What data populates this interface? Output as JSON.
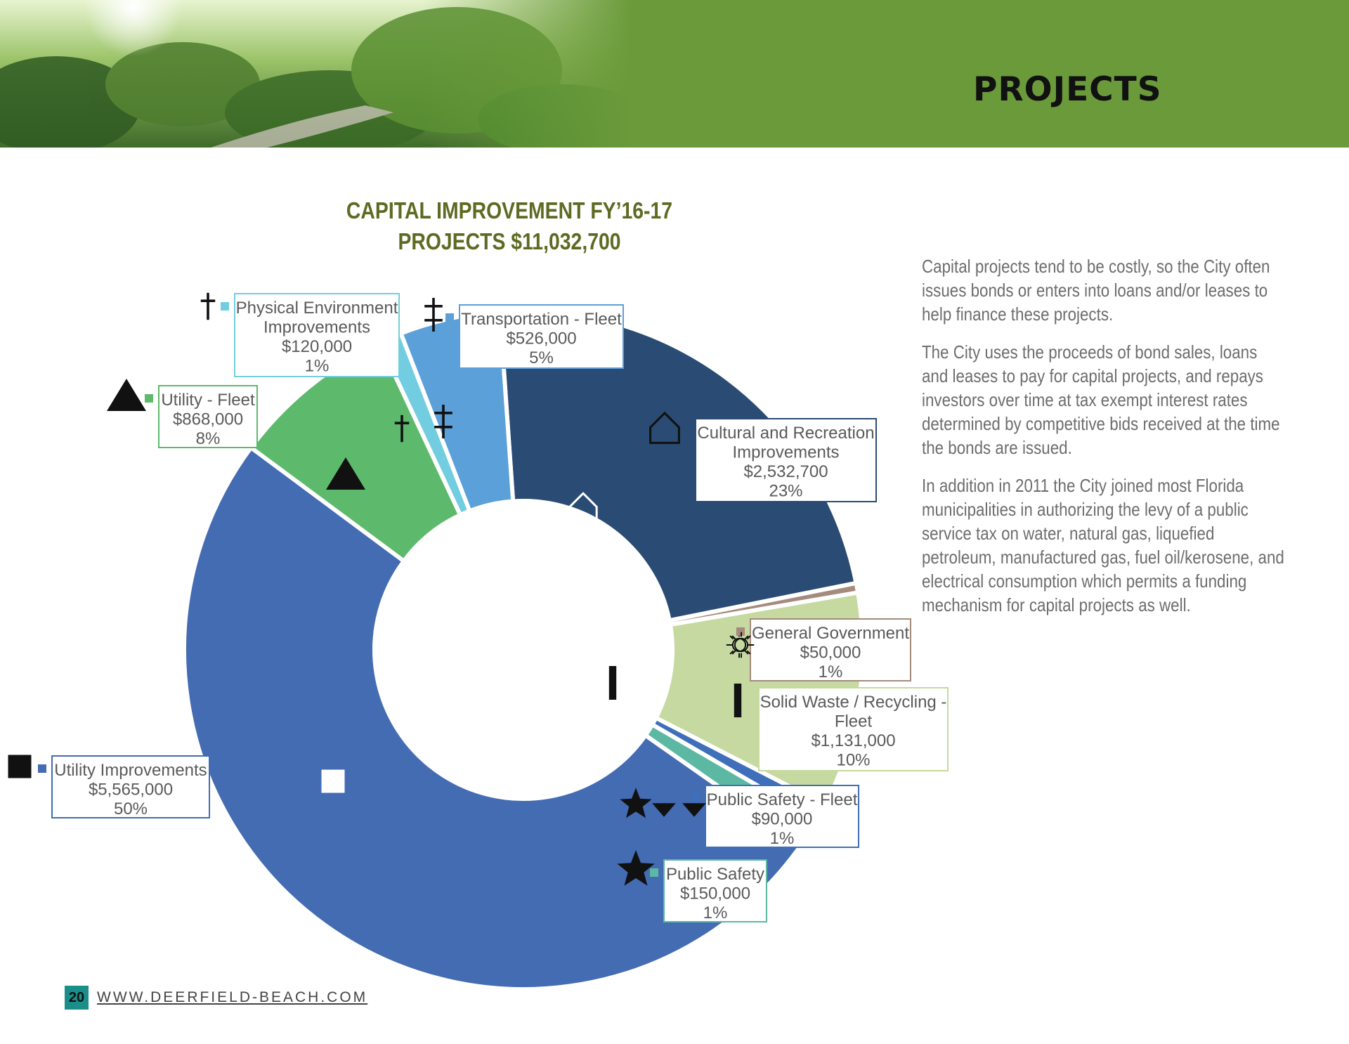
{
  "header": {
    "title": "PROJECTS"
  },
  "chart_data": {
    "type": "pie",
    "donut": true,
    "title_line1": "CAPITAL IMPROVEMENT FY’16-17",
    "title_line2": "PROJECTS $11,032,700",
    "slices": [
      {
        "name": "Cultural and Recreation Improvements",
        "label_lines": [
          "Cultural and Recreation",
          "Improvements"
        ],
        "value_text": "$2,532,700",
        "value": 2532700,
        "percent_text": "23%",
        "color": "#2a4b73",
        "marker": "house"
      },
      {
        "name": "General Government",
        "label_lines": [
          "General Government"
        ],
        "value_text": "$50,000",
        "value": 50000,
        "percent_text": "1%",
        "color": "#a58a7d",
        "marker": "sun"
      },
      {
        "name": "Solid Waste / Recycling - Fleet",
        "label_lines": [
          "Solid Waste / Recycling -",
          "Fleet"
        ],
        "value_text": "$1,131,000",
        "value": 1131000,
        "percent_text": "10%",
        "color": "#c6d9a0",
        "marker": "bar"
      },
      {
        "name": "Public Safety - Fleet",
        "label_lines": [
          "Public Safety - Fleet"
        ],
        "value_text": "$90,000",
        "value": 90000,
        "percent_text": "1%",
        "color": "#3f6fba",
        "marker": "down-triangle"
      },
      {
        "name": "Public Safety",
        "label_lines": [
          "Public Safety"
        ],
        "value_text": "$150,000",
        "value": 150000,
        "percent_text": "1%",
        "color": "#5cb8a2",
        "marker": "star"
      },
      {
        "name": "Utility Improvements",
        "label_lines": [
          "Utility Improvements"
        ],
        "value_text": "$5,565,000",
        "value": 5565000,
        "percent_text": "50%",
        "color": "#436cb3",
        "marker": "square"
      },
      {
        "name": "Utility - Fleet",
        "label_lines": [
          "Utility - Fleet"
        ],
        "value_text": "$868,000",
        "value": 868000,
        "percent_text": "8%",
        "color": "#5dba6c",
        "marker": "triangle"
      },
      {
        "name": "Physical Environment Improvements",
        "label_lines": [
          "Physical Environment",
          "Improvements"
        ],
        "value_text": "$120,000",
        "value": 120000,
        "percent_text": "1%",
        "color": "#72cde0",
        "marker": "dagger"
      },
      {
        "name": "Transportation - Fleet",
        "label_lines": [
          "Transportation - Fleet"
        ],
        "value_text": "$526,000",
        "value": 526000,
        "percent_text": "5%",
        "color": "#5ba0d8",
        "marker": "double-dagger"
      }
    ]
  },
  "body": {
    "p1": "Capital projects tend to be costly, so the City often issues bonds or enters into loans and/or leases to help finance these projects.",
    "p2": "The City uses the proceeds of bond sales, loans and leases to pay for capital projects, and repays investors over time at tax exempt interest rates determined by competitive bids received at the time the bonds are issued.",
    "p3": "In addition in 2011 the City joined most Florida municipalities in authorizing the levy of a public service tax on water, natural gas, liquefied petroleum, manufactured gas, fuel oil/kerosene, and electrical consumption which permits a funding mechanism for capital projects as well."
  },
  "footer": {
    "page_number": "20",
    "url": "WWW.DEERFIELD-BEACH.COM"
  }
}
